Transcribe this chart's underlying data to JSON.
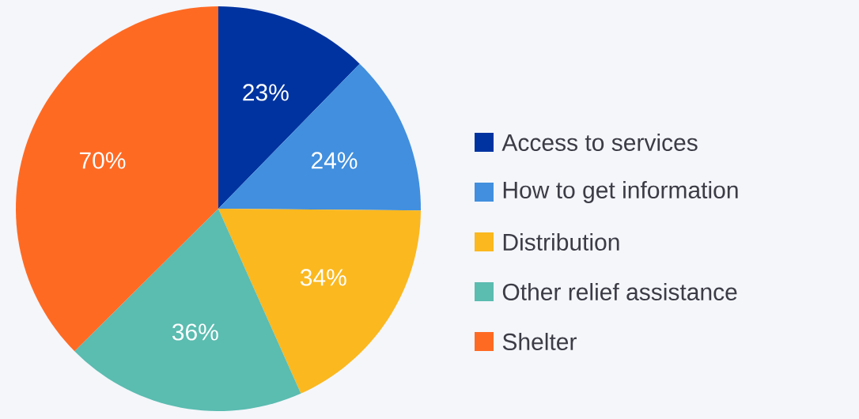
{
  "chart_data": {
    "type": "pie",
    "categories": [
      "Access to services",
      "How to get information",
      "Distribution",
      "Other relief assistance",
      "Shelter"
    ],
    "values": [
      23,
      24,
      34,
      36,
      70
    ],
    "value_labels": [
      "23%",
      "24%",
      "34%",
      "36%",
      "70%"
    ],
    "colors": [
      "#0033a0",
      "#418fde",
      "#fbb81f",
      "#5bbcb0",
      "#ff6a23"
    ],
    "legend": "right"
  }
}
